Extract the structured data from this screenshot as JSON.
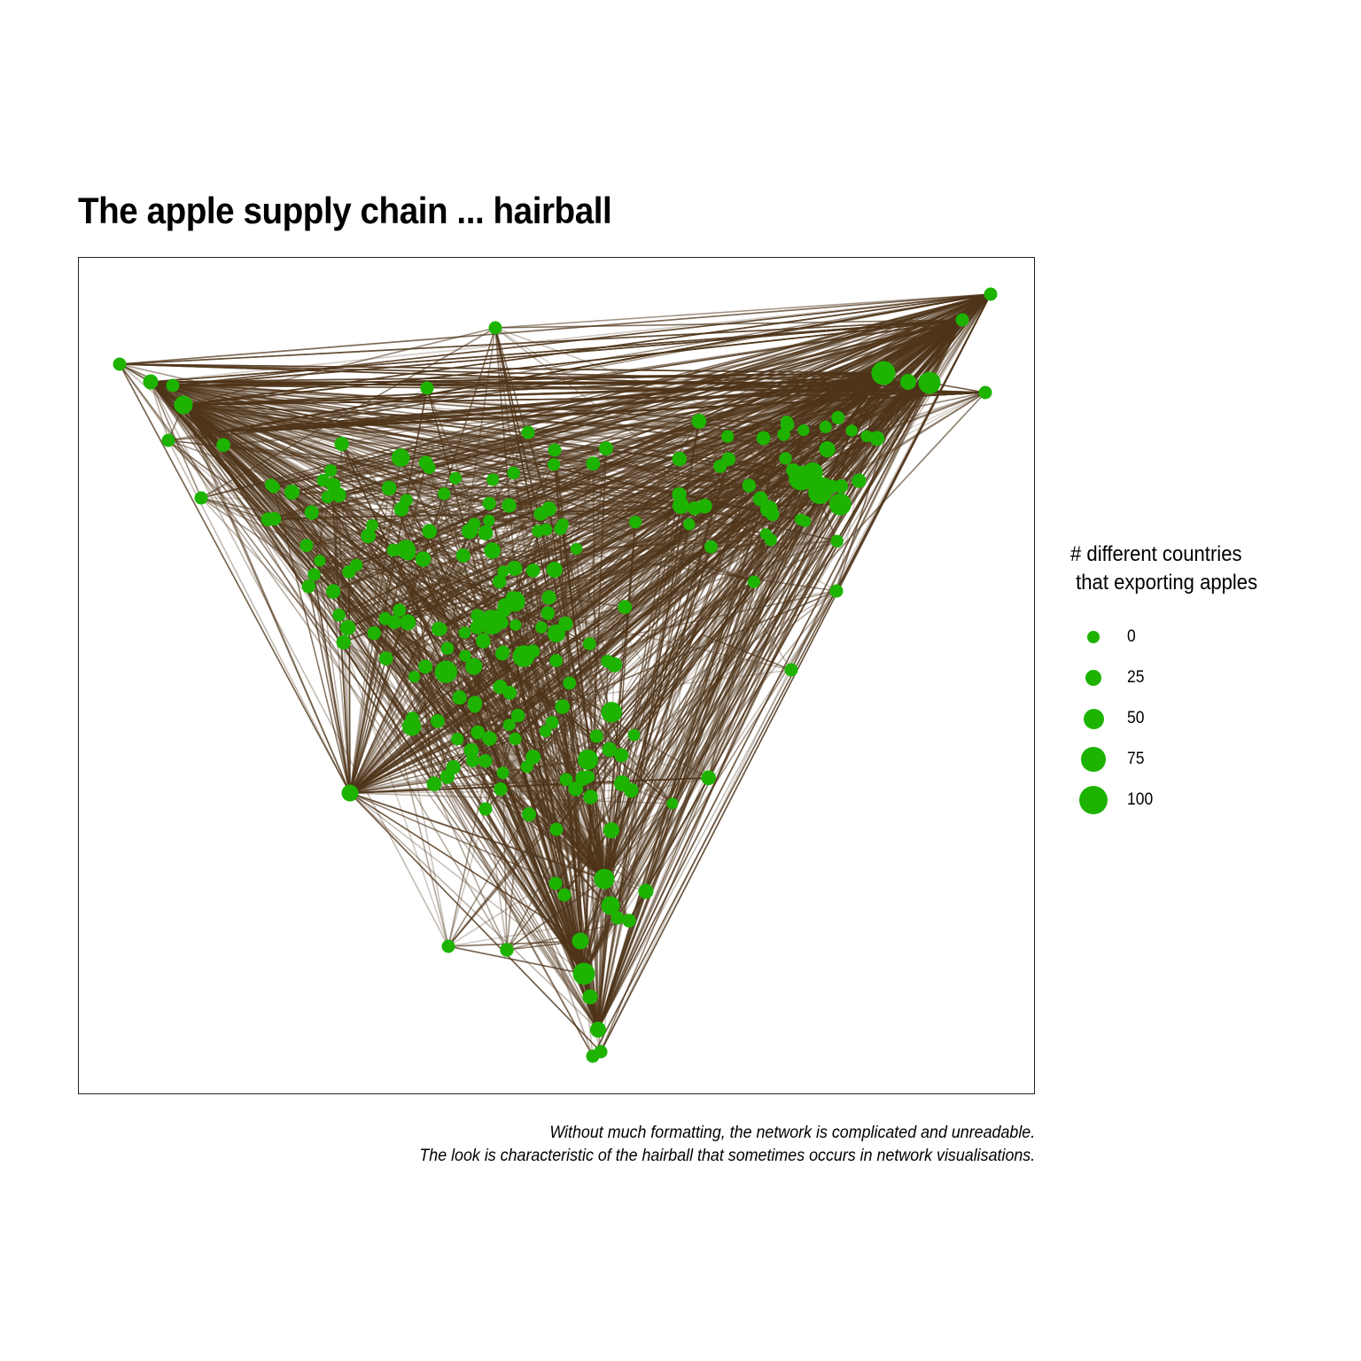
{
  "title": "The apple supply chain ... hairball",
  "legend": {
    "title": "# different countries\n that exporting apples",
    "items": [
      {
        "label": "0",
        "value": 0
      },
      {
        "label": "25",
        "value": 25
      },
      {
        "label": "50",
        "value": 50
      },
      {
        "label": "75",
        "value": 75
      },
      {
        "label": "100",
        "value": 100
      }
    ]
  },
  "caption": {
    "line1": "Without much formatting, the network is complicated and unreadable.",
    "line2": "The look is characteristic of the hairball that sometimes occurs in network visualisations."
  },
  "colors": {
    "node": "#1db300",
    "edge": "#4f351a",
    "background": "#ffffff"
  },
  "chart_data": {
    "type": "network",
    "size_variable": "# different countries that exporting apples",
    "size_range": [
      0,
      100
    ],
    "grid": false,
    "axes": false,
    "legend_position": "right"
  }
}
